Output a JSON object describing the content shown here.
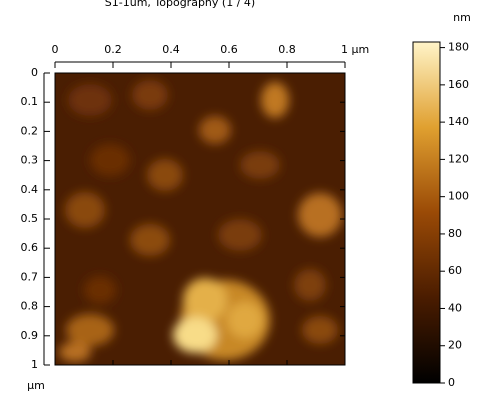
{
  "chart_data": {
    "type": "heatmap",
    "title": "S1-1um, Topography (1 / 4)",
    "ylabel": "µm",
    "colorbar_label": "nm",
    "xlim": [
      0,
      1
    ],
    "xticks": [
      0,
      0.2,
      0.4,
      0.6,
      0.8,
      {
        "value": 1,
        "label": "1 µm"
      }
    ],
    "ylim": [
      0,
      1
    ],
    "yticks": [
      0,
      0.1,
      0.2,
      0.3,
      0.4,
      0.5,
      0.6,
      0.7,
      0.8,
      0.9,
      1
    ],
    "zlim": [
      0,
      183
    ],
    "zticks": [
      0,
      20,
      40,
      60,
      80,
      100,
      120,
      140,
      160,
      180
    ]
  }
}
